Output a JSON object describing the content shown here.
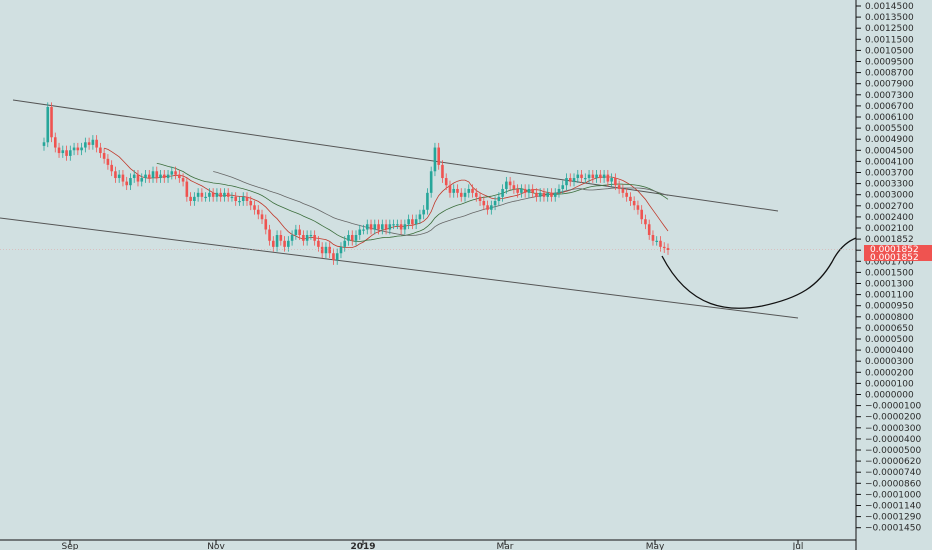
{
  "chart_data": {
    "type": "candlestick",
    "x_tick_labels": [
      "Sep",
      "Nov",
      "2019",
      "Mar",
      "May",
      "Jul"
    ],
    "y_tick_labels": [
      "0.0014500",
      "0.0013500",
      "0.0012500",
      "0.0011500",
      "0.0010500",
      "0.0009500",
      "0.0008700",
      "0.0007900",
      "0.0007300",
      "0.0006700",
      "0.0006100",
      "0.0005500",
      "0.0004900",
      "0.0004500",
      "0.0004100",
      "0.0003700",
      "0.0003300",
      "0.0003000",
      "0.0002700",
      "0.0002400",
      "0.0002100",
      "0.0001852",
      "0.0001852",
      "0.0001700",
      "0.0001500",
      "0.0001300",
      "0.0001100",
      "0.0000950",
      "0.0000800",
      "0.0000650",
      "0.0000500",
      "0.0000400",
      "0.0000300",
      "0.0000200",
      "0.0000100",
      "0.0000000",
      "−0.0000100",
      "−0.0000200",
      "−0.0000300",
      "−0.0000400",
      "−0.0000500",
      "−0.0000620",
      "−0.0000740",
      "−0.0000860",
      "−0.0001000",
      "−0.0001140",
      "−0.0001290",
      "−0.0001450"
    ],
    "last_price_labels": [
      "0.0001852",
      "0.0001852"
    ],
    "scale": "log",
    "up_color": "#26a69a",
    "down_color": "#ef5350",
    "closes": [
      0.00046,
      0.00062,
      0.00048,
      0.00044,
      0.00042,
      0.00043,
      0.00041,
      0.00043,
      0.00044,
      0.00043,
      0.00044,
      0.00046,
      0.00045,
      0.00047,
      0.00044,
      0.00042,
      0.0004,
      0.00038,
      0.00036,
      0.00034,
      0.00035,
      0.00033,
      0.00032,
      0.00034,
      0.00035,
      0.00033,
      0.00034,
      0.00035,
      0.00034,
      0.00036,
      0.00034,
      0.00035,
      0.00034,
      0.00035,
      0.00036,
      0.00035,
      0.00034,
      0.00033,
      0.00029,
      0.00028,
      0.00029,
      0.0003,
      0.00029,
      0.00029,
      0.0003,
      0.00029,
      0.0003,
      0.00029,
      0.0003,
      0.00029,
      0.00029,
      0.00028,
      0.00028,
      0.00029,
      0.00028,
      0.00027,
      0.00026,
      0.00025,
      0.00024,
      0.00022,
      0.0002,
      0.00019,
      0.00021,
      0.0002,
      0.00019,
      0.0002,
      0.00021,
      0.00022,
      0.00021,
      0.0002,
      0.00021,
      0.00021,
      0.0002,
      0.00019,
      0.00018,
      0.00019,
      0.00018,
      0.00017,
      0.00018,
      0.00019,
      0.0002,
      0.00021,
      0.0002,
      0.00021,
      0.00022,
      0.00022,
      0.00023,
      0.00022,
      0.00023,
      0.00022,
      0.00023,
      0.00022,
      0.00023,
      0.00023,
      0.00023,
      0.00022,
      0.00023,
      0.00024,
      0.00023,
      0.00024,
      0.00025,
      0.00026,
      0.0003,
      0.00036,
      0.00044,
      0.00038,
      0.00034,
      0.00032,
      0.0003,
      0.00031,
      0.0003,
      0.00029,
      0.0003,
      0.00031,
      0.0003,
      0.00029,
      0.00028,
      0.00027,
      0.00026,
      0.00027,
      0.00028,
      0.00029,
      0.00031,
      0.00033,
      0.00032,
      0.00031,
      0.0003,
      0.00031,
      0.0003,
      0.00031,
      0.0003,
      0.00029,
      0.0003,
      0.00029,
      0.0003,
      0.00029,
      0.0003,
      0.00031,
      0.00032,
      0.00034,
      0.00033,
      0.00034,
      0.00035,
      0.00034,
      0.00034,
      0.00035,
      0.00034,
      0.00035,
      0.00034,
      0.00035,
      0.00033,
      0.00034,
      0.00032,
      0.00031,
      0.0003,
      0.00029,
      0.00028,
      0.00027,
      0.00026,
      0.00024,
      0.00023,
      0.00021,
      0.0002,
      0.0002,
      0.00019,
      0.000188,
      0.000185
    ],
    "projection": "rounded bottom after May, recovering by Jul"
  }
}
